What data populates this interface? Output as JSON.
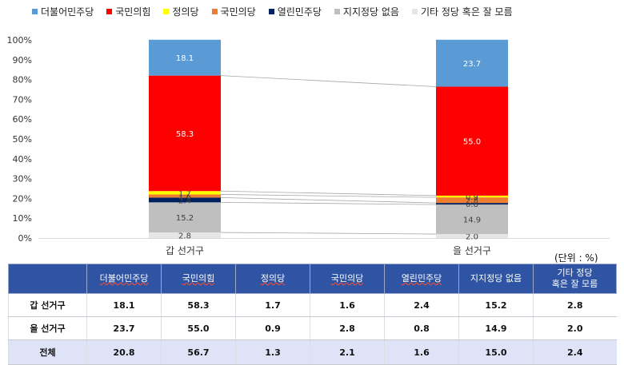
{
  "chart_data": {
    "type": "stacked-bar-100",
    "categories": [
      "갑 선거구",
      "을 선거구"
    ],
    "series": [
      {
        "name": "더불어민주당",
        "color": "#5b9bd5",
        "values": [
          18.1,
          23.7
        ]
      },
      {
        "name": "국민의힘",
        "color": "#ff0000",
        "values": [
          58.3,
          55.0
        ]
      },
      {
        "name": "정의당",
        "color": "#ffff00",
        "values": [
          1.7,
          0.9
        ]
      },
      {
        "name": "국민의당",
        "color": "#ed7d31",
        "values": [
          1.6,
          2.8
        ]
      },
      {
        "name": "열린민주당",
        "color": "#002060",
        "values": [
          2.4,
          0.8
        ]
      },
      {
        "name": "지지정당 없음",
        "color": "#bfbfbf",
        "values": [
          15.2,
          14.9
        ]
      },
      {
        "name": "기타 정당 혹은 잘 모름",
        "color": "#e7e6e6",
        "values": [
          2.8,
          2.0
        ]
      }
    ],
    "stack_order": [
      6,
      5,
      4,
      3,
      2,
      1,
      0
    ],
    "y_ticks": [
      "0%",
      "10%",
      "20%",
      "30%",
      "40%",
      "50%",
      "60%",
      "70%",
      "80%",
      "90%",
      "100%"
    ],
    "ylim": [
      0,
      100
    ],
    "legend_position": "top",
    "series_lines": true,
    "title": "",
    "xlabel": "",
    "ylabel": ""
  },
  "table": {
    "unit": "(단위 : %)",
    "headers": [
      "",
      "더불어민주당",
      "국민의힘",
      "정의당",
      "국민의당",
      "열린민주당",
      "지지정당 없음",
      "기타 정당\n혹은 잘 모름"
    ],
    "rows": [
      [
        "갑 선거구",
        "18.1",
        "58.3",
        "1.7",
        "1.6",
        "2.4",
        "15.2",
        "2.8"
      ],
      [
        "을 선거구",
        "23.7",
        "55.0",
        "0.9",
        "2.8",
        "0.8",
        "14.9",
        "2.0"
      ],
      [
        "전체",
        "20.8",
        "56.7",
        "1.3",
        "2.1",
        "1.6",
        "15.0",
        "2.4"
      ]
    ]
  }
}
